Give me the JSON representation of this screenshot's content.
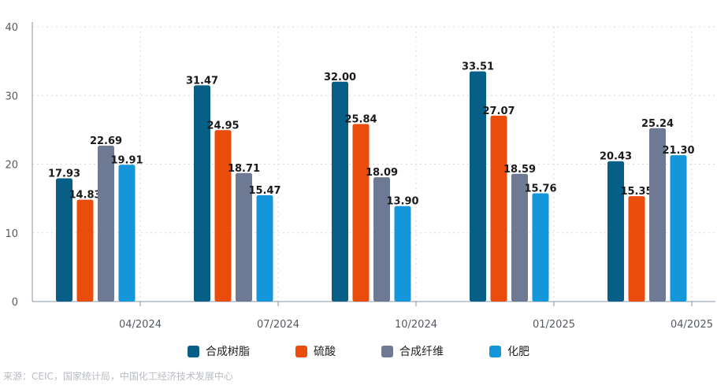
{
  "chart_data": {
    "type": "bar",
    "categories": [
      "04/2024",
      "07/2024",
      "10/2024",
      "01/2025",
      "04/2025"
    ],
    "series": [
      {
        "name": "合成树脂",
        "color": "#075e86",
        "values": [
          17.93,
          31.47,
          32.0,
          33.51,
          20.43
        ]
      },
      {
        "name": "硫酸",
        "color": "#ea4c0c",
        "values": [
          14.83,
          24.95,
          25.84,
          27.07,
          15.35
        ]
      },
      {
        "name": "合成纤维",
        "color": "#6e7a93",
        "values": [
          22.69,
          18.71,
          18.09,
          18.59,
          25.24
        ]
      },
      {
        "name": "化肥",
        "color": "#1397da",
        "values": [
          19.91,
          15.47,
          13.9,
          15.76,
          21.3
        ]
      }
    ],
    "data_labels": [
      [
        "17.93",
        "31.47",
        "32.00",
        "33.51",
        "20.43"
      ],
      [
        "14.83",
        "24.95",
        "25.84",
        "27.07",
        "15.35"
      ],
      [
        "22.69",
        "18.71",
        "18.09",
        "18.59",
        "25.24"
      ],
      [
        "19.91",
        "15.47",
        "13.90",
        "15.76",
        "21.30"
      ]
    ],
    "yticks": [
      0,
      10,
      20,
      30,
      40
    ],
    "ylim": [
      0,
      40
    ],
    "title": "",
    "xlabel": "",
    "ylabel": "",
    "grid": true,
    "legend": "bottom-center"
  },
  "source": "来源：CEIC，国家统计局，中国化工经济技术发展中心"
}
